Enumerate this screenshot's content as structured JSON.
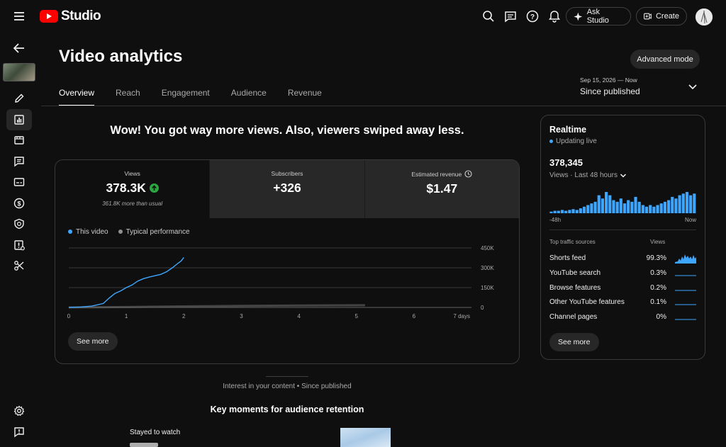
{
  "app": {
    "logo_text": "Studio",
    "brand_color": "#ff0000",
    "accent_color": "#3ea6ff"
  },
  "topbar": {
    "icons": [
      "search-icon",
      "feedback-icon",
      "help-icon",
      "notifications-icon"
    ],
    "ask_studio_label": "Ask Studio",
    "create_label": "Create"
  },
  "rail": {
    "items": [
      "back-icon",
      "video-thumbnail",
      "edit-icon",
      "analytics-icon",
      "editor-icon",
      "comments-icon",
      "subtitles-icon",
      "monetization-icon",
      "copyright-icon",
      "restrictions-icon",
      "clips-icon",
      "settings-icon",
      "send-feedback-icon"
    ]
  },
  "header": {
    "title": "Video analytics",
    "advanced_mode_label": "Advanced mode",
    "tabs": [
      {
        "label": "Overview",
        "active": true
      },
      {
        "label": "Reach",
        "active": false
      },
      {
        "label": "Engagement",
        "active": false
      },
      {
        "label": "Audience",
        "active": false
      },
      {
        "label": "Revenue",
        "active": false
      }
    ],
    "date_range": "Sep 15, 2026 — Now",
    "date_label": "Since published"
  },
  "headline": "Wow! You got way more views. Also, viewers swiped away less.",
  "metrics": [
    {
      "label": "Views",
      "value": "378.3K",
      "sub": "361.8K more than usual",
      "trend": "up"
    },
    {
      "label": "Subscribers",
      "value": "+326"
    },
    {
      "label": "Estimated revenue",
      "value": "$1.47"
    }
  ],
  "legend": {
    "this_video": "This video",
    "typical": "Typical performance"
  },
  "chart_data": {
    "type": "line",
    "x_ticks": [
      "0",
      "1",
      "2",
      "3",
      "4",
      "5",
      "6",
      "7 days"
    ],
    "y_ticks": [
      "450K",
      "300K",
      "150K",
      "0"
    ],
    "ylim": [
      0,
      450000
    ],
    "xlim": [
      0,
      7
    ],
    "series": [
      {
        "name": "This video",
        "color": "#3ea6ff",
        "x": [
          0,
          0.2,
          0.4,
          0.6,
          0.7,
          0.8,
          0.9,
          1.0,
          1.1,
          1.2,
          1.3,
          1.4,
          1.5,
          1.6,
          1.7,
          1.8,
          1.9,
          1.95,
          2.0
        ],
        "y": [
          0,
          3000,
          10000,
          30000,
          70000,
          105000,
          125000,
          150000,
          170000,
          200000,
          218000,
          230000,
          240000,
          250000,
          270000,
          300000,
          335000,
          350000,
          378300
        ]
      },
      {
        "name": "Typical performance",
        "color": "#717171",
        "x": [
          0,
          1,
          2,
          3,
          4,
          5.15
        ],
        "y": [
          0,
          3000,
          8000,
          12000,
          15000,
          16500
        ]
      }
    ],
    "grid": true
  },
  "see_more_label": "See more",
  "realtime": {
    "title": "Realtime",
    "status": "Updating live",
    "views": "378,345",
    "views_label": "Views · Last 48 hours",
    "axis_start": "-48h",
    "axis_end": "Now",
    "bars": [
      2,
      3,
      3,
      4,
      3,
      4,
      5,
      4,
      6,
      8,
      10,
      12,
      14,
      22,
      18,
      26,
      22,
      16,
      14,
      18,
      12,
      16,
      14,
      20,
      14,
      10,
      8,
      10,
      8,
      10,
      12,
      14,
      16,
      20,
      18,
      22,
      24,
      26,
      22,
      24
    ],
    "sources_header": "Top traffic sources",
    "views_header": "Views",
    "sources": [
      {
        "name": "Shorts feed",
        "pct": "99.3%"
      },
      {
        "name": "YouTube search",
        "pct": "0.3%"
      },
      {
        "name": "Browse features",
        "pct": "0.2%"
      },
      {
        "name": "Other YouTube features",
        "pct": "0.1%"
      },
      {
        "name": "Channel pages",
        "pct": "0%"
      }
    ],
    "see_more_label": "See more"
  },
  "interest": "Interest in your content • Since published",
  "key_moments_title": "Key moments for audience retention",
  "stayed_label": "Stayed to watch"
}
